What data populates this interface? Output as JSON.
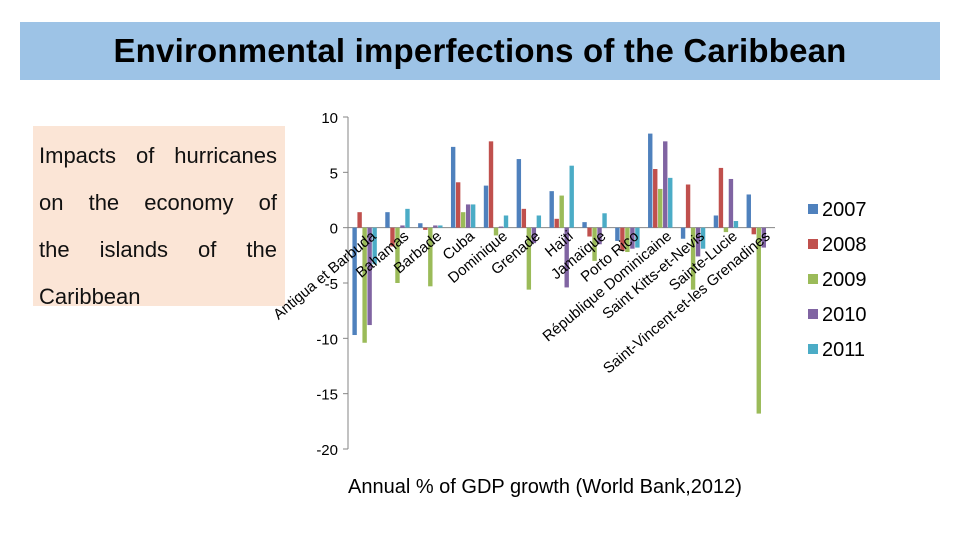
{
  "title": "Environmental imperfections of the Caribbean",
  "side_text": "Impacts of hurricanes on the economy of the islands of the Caribbean",
  "caption": "Annual % of GDP growth (World Bank,2012)",
  "chart_data": {
    "type": "bar",
    "title": "",
    "xlabel": "",
    "ylabel": "",
    "ylim": [
      -20,
      10
    ],
    "yticks": [
      10,
      5,
      0,
      -5,
      -10,
      -15,
      -20
    ],
    "grid": false,
    "legend_position": "right",
    "categories": [
      "Antigua et Barbuda",
      "Bahamas",
      "Barbade",
      "Cuba",
      "Dominique",
      "Grenade",
      "Haïti",
      "Jamaïque",
      "Porto Rico",
      "République Dominicaine",
      "Saint Kitts-et-Nevis",
      "Sainte-Lucie",
      "Saint-Vincent-et-les Grenadines"
    ],
    "series": [
      {
        "name": "2007",
        "color": "#4f81bd",
        "values": [
          -9.7,
          1.4,
          0.4,
          7.3,
          3.8,
          6.2,
          3.3,
          0.5,
          -1.2,
          8.5,
          -1.0,
          1.1,
          3.0
        ]
      },
      {
        "name": "2008",
        "color": "#c0504d",
        "values": [
          1.4,
          -1.7,
          -0.2,
          4.1,
          7.8,
          1.7,
          0.8,
          -0.8,
          -2.1,
          5.3,
          3.9,
          5.4,
          -0.6
        ]
      },
      {
        "name": "2009",
        "color": "#9bbb59",
        "values": [
          -10.4,
          -5.0,
          -5.3,
          1.4,
          -0.7,
          -5.6,
          2.9,
          -3.0,
          -2.2,
          3.5,
          -5.6,
          -0.4,
          -16.8
        ]
      },
      {
        "name": "2010",
        "color": "#8064a2",
        "values": [
          -8.8,
          0.2,
          0.2,
          2.1,
          0.1,
          -1.4,
          -5.4,
          -1.5,
          -1.9,
          7.8,
          -2.6,
          4.4,
          -1.8
        ]
      },
      {
        "name": "2011",
        "color": "#4bacc6",
        "values": [
          -3.3,
          1.7,
          0.2,
          2.1,
          1.1,
          1.1,
          5.6,
          1.3,
          -1.8,
          4.5,
          -1.9,
          0.6,
          0.0
        ]
      }
    ]
  }
}
